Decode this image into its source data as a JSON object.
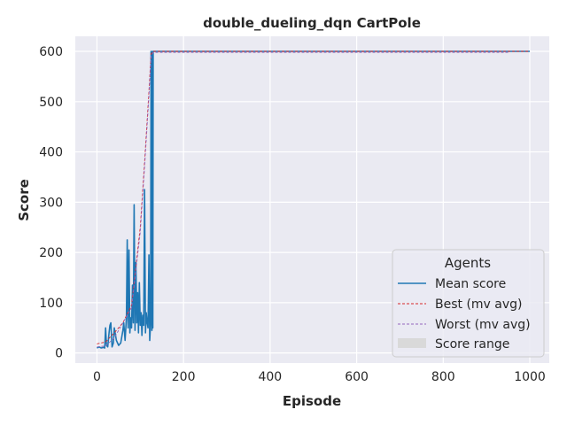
{
  "chart_data": {
    "type": "line",
    "title": "double_dueling_dqn CartPole",
    "xlabel": "Episode",
    "ylabel": "Score",
    "xlim": [
      -50,
      1045
    ],
    "ylim": [
      -20,
      630
    ],
    "xticks": [
      0,
      200,
      400,
      600,
      800,
      1000
    ],
    "yticks": [
      0,
      100,
      200,
      300,
      400,
      500,
      600
    ],
    "grid": true,
    "legend": {
      "title": "Agents",
      "placement": "lower-right"
    },
    "colors": {
      "mean": "#1f77b4",
      "best": "#d62728",
      "worst": "#9467bd",
      "range": "#d9d9d9",
      "background": "#eaeaf2",
      "grid": "#ffffff"
    },
    "series": [
      {
        "name": "Mean score",
        "style": "solid",
        "x": [
          0,
          5,
          10,
          15,
          18,
          20,
          22,
          25,
          28,
          30,
          32,
          35,
          38,
          40,
          45,
          50,
          55,
          60,
          62,
          65,
          68,
          70,
          72,
          74,
          76,
          78,
          80,
          82,
          84,
          86,
          88,
          90,
          92,
          94,
          96,
          98,
          100,
          102,
          104,
          106,
          108,
          110,
          112,
          114,
          116,
          118,
          120,
          122,
          124,
          125,
          126,
          127,
          128,
          129,
          130,
          132,
          200,
          400,
          600,
          800,
          1000
        ],
        "y": [
          10,
          12,
          10,
          11,
          10,
          50,
          15,
          12,
          40,
          55,
          60,
          12,
          20,
          50,
          25,
          15,
          20,
          45,
          60,
          25,
          70,
          225,
          50,
          205,
          40,
          70,
          50,
          135,
          60,
          295,
          45,
          180,
          60,
          120,
          40,
          140,
          55,
          80,
          35,
          75,
          55,
          325,
          40,
          80,
          60,
          50,
          195,
          25,
          60,
          600,
          570,
          45,
          600,
          50,
          600,
          600,
          600,
          600,
          600,
          600,
          600
        ]
      },
      {
        "name": "Best (mv avg)",
        "style": "dashed",
        "x": [
          0,
          20,
          40,
          60,
          80,
          100,
          110,
          120,
          125,
          130,
          200,
          400,
          600,
          800,
          1000
        ],
        "y": [
          18,
          22,
          40,
          60,
          95,
          250,
          380,
          520,
          595,
          600,
          600,
          600,
          600,
          600,
          600
        ]
      },
      {
        "name": "Worst (mv avg)",
        "style": "dashed",
        "x": [
          0,
          20,
          40,
          60,
          80,
          100,
          110,
          120,
          125,
          130,
          200,
          400,
          600,
          800,
          950
        ],
        "y": [
          12,
          14,
          30,
          60,
          90,
          240,
          370,
          510,
          590,
          598,
          598,
          598,
          598,
          598,
          598
        ]
      },
      {
        "name": "Score range",
        "style": "band"
      }
    ]
  }
}
